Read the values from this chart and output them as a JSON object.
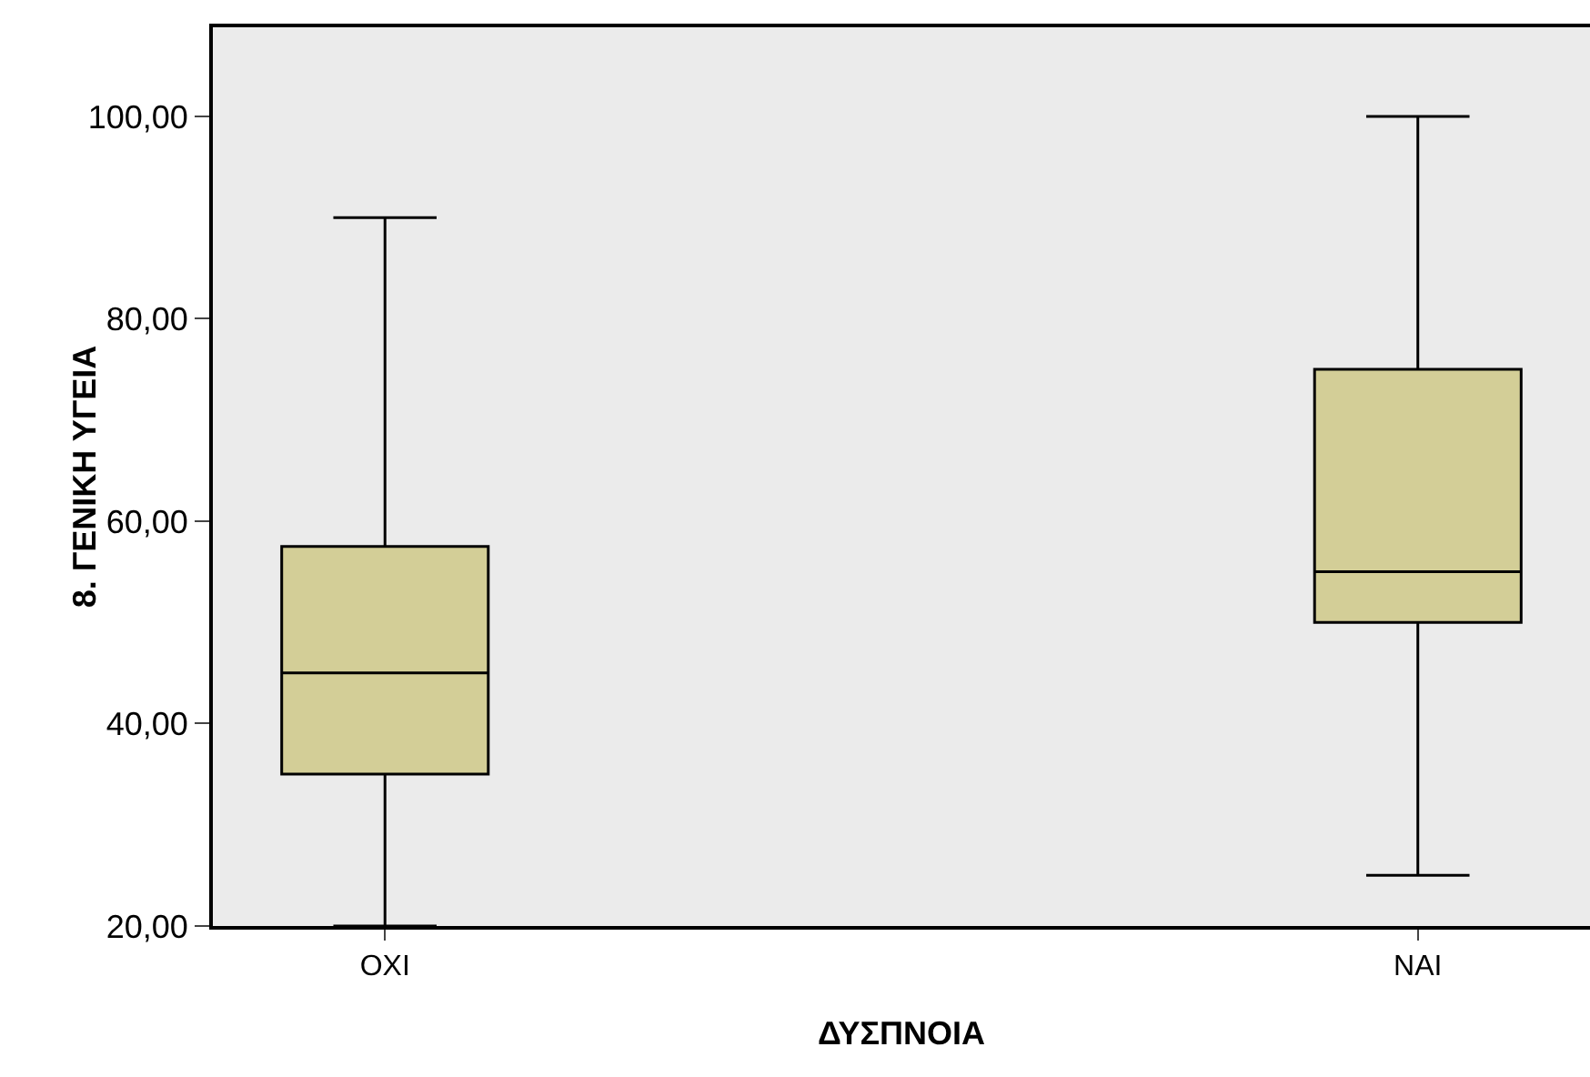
{
  "chart_data": {
    "type": "box",
    "xlabel": "ΔΥΣΠΝΟΙΑ",
    "ylabel": "8. ΓΕΝΙΚΗ ΥΓΕΙΑ",
    "categories": [
      "ΟΧΙ",
      "ΝΑΙ"
    ],
    "series": [
      {
        "color": "#d3ce97",
        "boxes": [
          {
            "low": 20,
            "q1": 35,
            "median": 45,
            "q3": 57.5,
            "high": 90
          },
          {
            "low": 25,
            "q1": 50,
            "median": 55,
            "q3": 75,
            "high": 100
          }
        ]
      }
    ],
    "ylim": [
      20,
      108.8
    ],
    "yticks": [
      {
        "value": 20,
        "label": "20,00"
      },
      {
        "value": 40,
        "label": "40,00"
      },
      {
        "value": 60,
        "label": "60,00"
      },
      {
        "value": 80,
        "label": "80,00"
      },
      {
        "value": 100,
        "label": "100,00"
      }
    ]
  }
}
